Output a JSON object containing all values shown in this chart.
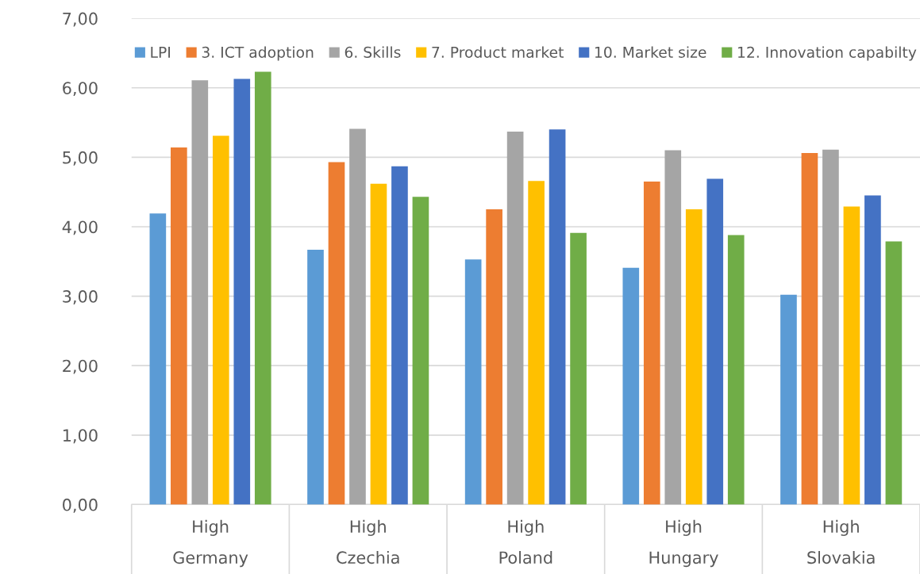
{
  "chart_data": {
    "type": "bar",
    "categories": [
      "High\nGermany",
      "High\nCzechia",
      "High\nPoland",
      "High\nHungary",
      "High\nSlovakia"
    ],
    "series": [
      {
        "name": "LPI",
        "color": "#5b9bd5",
        "values": [
          4.19,
          3.67,
          3.53,
          3.41,
          3.02
        ]
      },
      {
        "name": "3. ICT adoption",
        "color": "#ed7d31",
        "values": [
          5.14,
          4.93,
          4.25,
          4.65,
          5.06
        ]
      },
      {
        "name": "6. Skills",
        "color": "#a5a5a5",
        "values": [
          6.11,
          5.41,
          5.37,
          5.1,
          5.11
        ]
      },
      {
        "name": "7. Product market",
        "color": "#ffc000",
        "values": [
          5.31,
          4.62,
          4.66,
          4.25,
          4.29
        ]
      },
      {
        "name": "10. Market size",
        "color": "#4472c4",
        "values": [
          6.13,
          4.87,
          5.4,
          4.69,
          4.45
        ]
      },
      {
        "name": "12. Innovation capabilty",
        "color": "#70ad47",
        "values": [
          6.23,
          4.43,
          3.91,
          3.88,
          3.79
        ]
      }
    ],
    "ylim": [
      0,
      7
    ],
    "yticks": [
      {
        "value": 0,
        "label": "0,00"
      },
      {
        "value": 1,
        "label": "1,00"
      },
      {
        "value": 2,
        "label": "2,00"
      },
      {
        "value": 3,
        "label": "3,00"
      },
      {
        "value": 4,
        "label": "4,00"
      },
      {
        "value": 5,
        "label": "5,00"
      },
      {
        "value": 6,
        "label": "6,00"
      },
      {
        "value": 7,
        "label": "7,00"
      }
    ],
    "grid": "y",
    "legend": "top"
  }
}
